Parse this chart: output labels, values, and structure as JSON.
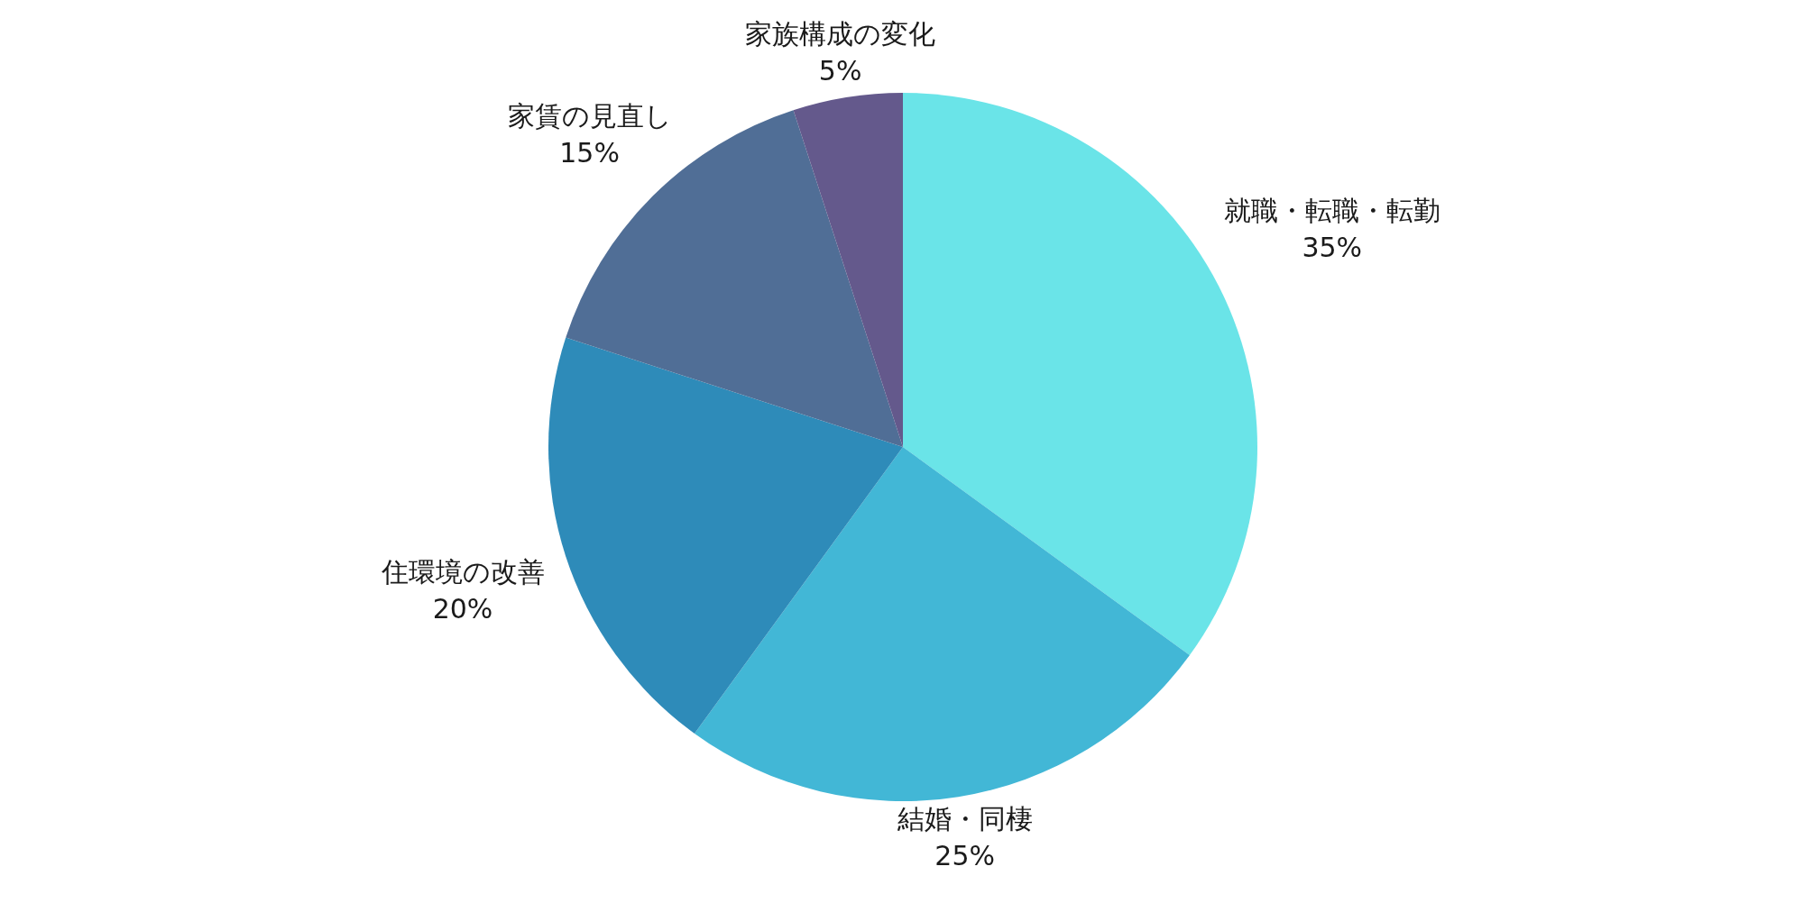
{
  "chart_data": {
    "type": "pie",
    "categories": [
      "就職・転職・転勤",
      "結婚・同棲",
      "住環境の改善",
      "家賃の見直し",
      "家族構成の変化"
    ],
    "values": [
      35,
      25,
      20,
      15,
      5
    ],
    "value_labels": [
      "35%",
      "25%",
      "20%",
      "15%",
      "5%"
    ],
    "colors": [
      "#6ae4e8",
      "#42b7d6",
      "#2e8bb9",
      "#506e96",
      "#64598c"
    ]
  }
}
